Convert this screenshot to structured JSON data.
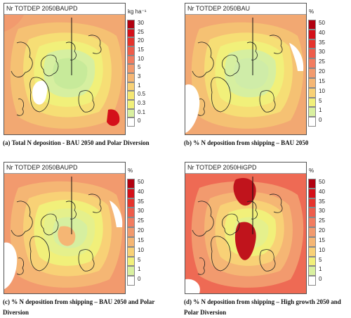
{
  "panels": [
    {
      "title": "Nr TOTDEP 2050BAUPD",
      "unit": "kg ha⁻¹",
      "ticks": [
        "30",
        "25",
        "20",
        "15",
        "10",
        "5",
        "3",
        "1",
        "0.5",
        "0.3",
        "0.1",
        "0"
      ],
      "colors": [
        "#b10010",
        "#d4101a",
        "#e5332d",
        "#ee5c4b",
        "#f27c60",
        "#f29a6e",
        "#f5b674",
        "#f8d176",
        "#f5e773",
        "#f1f07a",
        "#d9f0a0",
        "#ffffff"
      ],
      "caption": "(a)  Total N deposition - BAU 2050 and Polar Diversion"
    },
    {
      "title": "Nr TOTDEP 2050BAU",
      "unit": "%",
      "ticks": [
        "50",
        "40",
        "35",
        "30",
        "25",
        "20",
        "15",
        "10",
        "5",
        "1",
        "0"
      ],
      "colors": [
        "#b10010",
        "#d4101a",
        "#e5332d",
        "#ee5c4b",
        "#f27c60",
        "#f29a6e",
        "#f5b674",
        "#f8d176",
        "#f1f07a",
        "#d9f0a0",
        "#ffffff"
      ],
      "caption": "(b)  % N deposition from shipping – BAU 2050"
    },
    {
      "title": "Nr TOTDEP 2050BAUPD",
      "unit": "%",
      "ticks": [
        "50",
        "40",
        "35",
        "30",
        "25",
        "20",
        "15",
        "10",
        "5",
        "1",
        "0"
      ],
      "colors": [
        "#b10010",
        "#d4101a",
        "#e5332d",
        "#ee5c4b",
        "#f27c60",
        "#f29a6e",
        "#f5b674",
        "#f8d176",
        "#f1f07a",
        "#d9f0a0",
        "#ffffff"
      ],
      "caption": "(c)  % N deposition from shipping – BAU 2050 and Polar Diversion"
    },
    {
      "title": "Nr TOTDEP 2050HiGPD",
      "unit": "%",
      "ticks": [
        "50",
        "40",
        "35",
        "30",
        "25",
        "20",
        "15",
        "10",
        "5",
        "1",
        "0"
      ],
      "colors": [
        "#b10010",
        "#d4101a",
        "#e5332d",
        "#ee5c4b",
        "#f27c60",
        "#f29a6e",
        "#f5b674",
        "#f8d176",
        "#f1f07a",
        "#d9f0a0",
        "#ffffff"
      ],
      "caption": "(d)  % N deposition from shipping – High growth 2050 and Polar Diversion"
    }
  ]
}
